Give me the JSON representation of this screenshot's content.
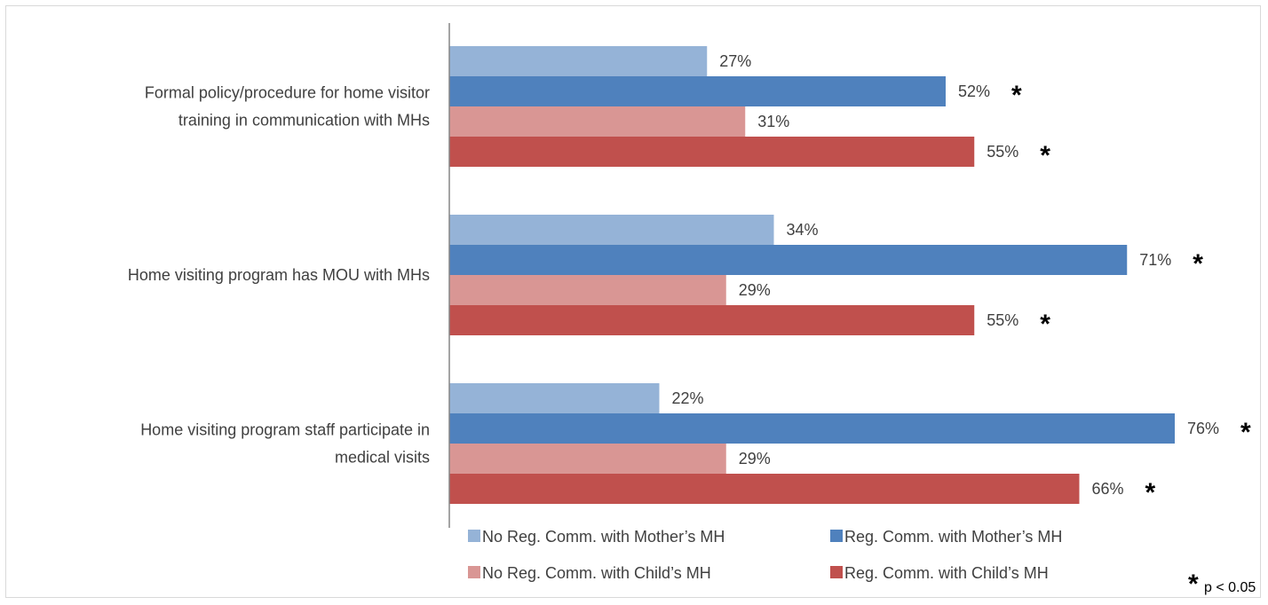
{
  "chart_data": {
    "type": "bar",
    "orientation": "horizontal",
    "categories": [
      "Formal policy/procedure for home visitor training in communication with MHs",
      "Home visiting program has MOU with MHs",
      "Home visiting program staff participate in medical visits"
    ],
    "category_lines": [
      [
        "Formal policy/procedure for home visitor",
        "training in communication with MHs"
      ],
      [
        "Home visiting program has MOU with MHs"
      ],
      [
        "Home visiting program staff participate in",
        "medical visits"
      ]
    ],
    "series": [
      {
        "name": "No Reg. Comm. with Mother’s MH",
        "values": [
          27,
          34,
          22
        ],
        "labels": [
          "27%",
          "34%",
          "22%"
        ],
        "significant": [
          false,
          false,
          false
        ],
        "color": "#95b3d7"
      },
      {
        "name": "Reg. Comm. with Mother’s MH",
        "values": [
          52,
          71,
          76
        ],
        "labels": [
          "52%",
          "71%",
          "76%"
        ],
        "significant": [
          true,
          true,
          true
        ],
        "color": "#4f81bd"
      },
      {
        "name": "No Reg. Comm. with Child’s MH",
        "values": [
          31,
          29,
          29
        ],
        "labels": [
          "31%",
          "29%",
          "29%"
        ],
        "significant": [
          false,
          false,
          false
        ],
        "color": "#d99694"
      },
      {
        "name": "Reg. Comm. with Child’s MH",
        "values": [
          55,
          55,
          66
        ],
        "labels": [
          "55%",
          "55%",
          "66%"
        ],
        "significant": [
          true,
          true,
          true
        ],
        "color": "#c0504d"
      }
    ],
    "xlim": [
      0,
      80
    ],
    "grid": false,
    "legend_position": "bottom",
    "significance_marker": "*",
    "significance_note": "p < 0.05"
  }
}
